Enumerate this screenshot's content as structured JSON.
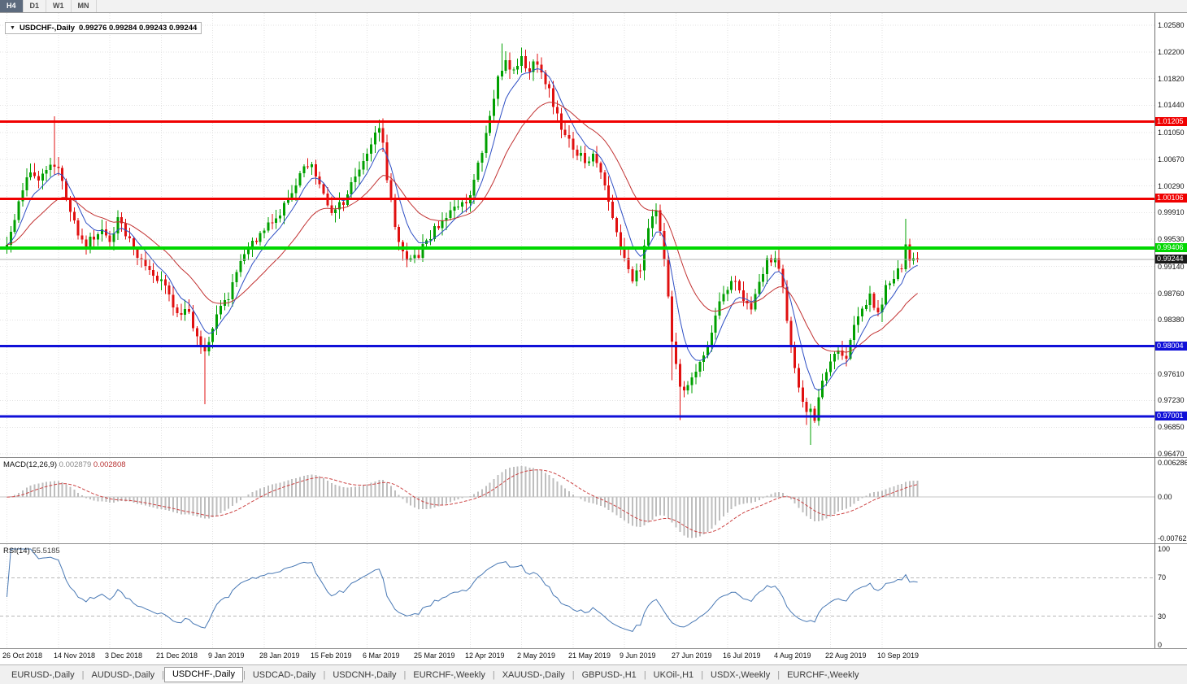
{
  "colors": {
    "up": "#00A000",
    "down": "#E01010",
    "ma_fast": "#2E4FC4",
    "ma_slow": "#C23232",
    "macd_hist": "#BEBEBE",
    "macd_signal": "#CC4444",
    "rsi_line": "#4878B4",
    "level_red": "#F00000",
    "level_green": "#00D800",
    "level_blue": "#1010D8",
    "grid": "#E2E2E2",
    "current_line": "#B0B0B0",
    "current_tag_bg": "#1A1A1A"
  },
  "toolbar": {
    "timeframes": [
      {
        "label": "H4",
        "active": true
      },
      {
        "label": "D1",
        "active": false
      },
      {
        "label": "W1",
        "active": false
      },
      {
        "label": "MN",
        "active": false
      }
    ]
  },
  "chart": {
    "symbol_label": "USDCHF-,Daily",
    "ohlc": "0.99276 0.99284 0.99243 0.99244",
    "current_price": "0.99244",
    "axis_ticks": [
      "1.02580",
      "1.02200",
      "1.01820",
      "1.01440",
      "1.01050",
      "1.00670",
      "1.00290",
      "0.99910",
      "0.99530",
      "0.99140",
      "0.98760",
      "0.98380",
      "0.97610",
      "0.97230",
      "0.96850",
      "0.96470"
    ],
    "levels": [
      {
        "value": 1.01205,
        "label": "1.01205",
        "color_key": "level_red",
        "thickness": 3
      },
      {
        "value": 1.00106,
        "label": "1.00106",
        "color_key": "level_red",
        "thickness": 3
      },
      {
        "value": 0.99406,
        "label": "0.99406",
        "color_key": "level_green",
        "thickness": 4
      },
      {
        "value": 0.98004,
        "label": "0.98004",
        "color_key": "level_blue",
        "thickness": 3
      },
      {
        "value": 0.97001,
        "label": "0.97001",
        "color_key": "level_blue",
        "thickness": 3
      }
    ]
  },
  "macd": {
    "label": "MACD(12,26,9)",
    "value_main": "0.002879",
    "value_signal": "0.002808",
    "axis": [
      "0.006286",
      "0.00",
      "-0.00762"
    ]
  },
  "rsi": {
    "label": "RSI(14)",
    "value": "55.5185",
    "axis": [
      "100",
      "70",
      "30",
      "0"
    ],
    "guides": [
      70,
      30
    ]
  },
  "tabs": [
    {
      "label": "EURUSD-,Daily",
      "active": false
    },
    {
      "label": "AUDUSD-,Daily",
      "active": false
    },
    {
      "label": "USDCHF-,Daily",
      "active": true
    },
    {
      "label": "USDCAD-,Daily",
      "active": false
    },
    {
      "label": "USDCNH-,Daily",
      "active": false
    },
    {
      "label": "EURCHF-,Weekly",
      "active": false
    },
    {
      "label": "XAUUSD-,Daily",
      "active": false
    },
    {
      "label": "GBPUSD-,H1",
      "active": false
    },
    {
      "label": "UKOil-,H1",
      "active": false
    },
    {
      "label": "USDX-,Weekly",
      "active": false
    },
    {
      "label": "EURCHF-,Weekly",
      "active": false
    }
  ],
  "chart_data": {
    "type": "candlestick",
    "symbol": "USDCHF",
    "timeframe": "Daily",
    "bars": 231,
    "bars_per_label": 13,
    "price_axis_range": [
      0.96424,
      1.02754
    ],
    "last_ohlc": {
      "open": 0.99276,
      "high": 0.99284,
      "low": 0.99243,
      "close": 0.99244
    },
    "x_labels": [
      "26 Oct 2018",
      "14 Nov 2018",
      "3 Dec 2018",
      "21 Dec 2018",
      "9 Jan 2019",
      "28 Jan 2019",
      "15 Feb 2019",
      "6 Mar 2019",
      "25 Mar 2019",
      "12 Apr 2019",
      "2 May 2019",
      "21 May 2019",
      "9 Jun 2019",
      "27 Jun 2019",
      "16 Jul 2019",
      "4 Aug 2019",
      "22 Aug 2019",
      "10 Sep 2019"
    ],
    "support_resistance": [
      1.01205,
      1.00106,
      0.99406,
      0.98004,
      0.97001
    ],
    "close_waypoints": [
      [
        0,
        0.995
      ],
      [
        2,
        0.9985
      ],
      [
        4,
        1.0025
      ],
      [
        6,
        1.0055
      ],
      [
        8,
        1.003
      ],
      [
        10,
        1.005
      ],
      [
        12,
        1.0062
      ],
      [
        14,
        1.004
      ],
      [
        16,
        0.9995
      ],
      [
        18,
        0.996
      ],
      [
        20,
        0.9945
      ],
      [
        22,
        0.9958
      ],
      [
        24,
        0.9968
      ],
      [
        26,
        0.995
      ],
      [
        28,
        0.9985
      ],
      [
        30,
        0.996
      ],
      [
        32,
        0.9935
      ],
      [
        34,
        0.9925
      ],
      [
        36,
        0.9912
      ],
      [
        38,
        0.99
      ],
      [
        40,
        0.988
      ],
      [
        42,
        0.9862
      ],
      [
        44,
        0.9845
      ],
      [
        46,
        0.9852
      ],
      [
        48,
        0.981
      ],
      [
        50,
        0.9788
      ],
      [
        52,
        0.9828
      ],
      [
        54,
        0.9852
      ],
      [
        56,
        0.987
      ],
      [
        58,
        0.9905
      ],
      [
        60,
        0.9928
      ],
      [
        62,
        0.9948
      ],
      [
        64,
        0.9958
      ],
      [
        66,
        0.9972
      ],
      [
        68,
        0.9985
      ],
      [
        70,
        1.0002
      ],
      [
        72,
        1.0022
      ],
      [
        74,
        1.0042
      ],
      [
        76,
        1.006
      ],
      [
        78,
        1.0048
      ],
      [
        80,
        1.0018
      ],
      [
        82,
        0.9995
      ],
      [
        84,
        1.0
      ],
      [
        86,
        1.0015
      ],
      [
        88,
        1.004
      ],
      [
        90,
        1.007
      ],
      [
        92,
        1.0092
      ],
      [
        94,
        1.011
      ],
      [
        95,
        1.009
      ],
      [
        96,
        1.0042
      ],
      [
        98,
        0.9975
      ],
      [
        100,
        0.9932
      ],
      [
        102,
        0.9922
      ],
      [
        104,
        0.993
      ],
      [
        106,
        0.995
      ],
      [
        108,
        0.9966
      ],
      [
        110,
        0.998
      ],
      [
        112,
        0.9992
      ],
      [
        114,
        1.0
      ],
      [
        116,
        1.0008
      ],
      [
        118,
        1.0036
      ],
      [
        120,
        1.008
      ],
      [
        122,
        1.013
      ],
      [
        124,
        1.0185
      ],
      [
        126,
        1.0205
      ],
      [
        128,
        1.019
      ],
      [
        130,
        1.0212
      ],
      [
        132,
        1.0195
      ],
      [
        134,
        1.0205
      ],
      [
        136,
        1.0178
      ],
      [
        138,
        1.0148
      ],
      [
        140,
        1.0112
      ],
      [
        142,
        1.0092
      ],
      [
        144,
        1.0078
      ],
      [
        146,
        1.0062
      ],
      [
        148,
        1.0075
      ],
      [
        150,
        1.0052
      ],
      [
        152,
        1.001
      ],
      [
        154,
        0.9968
      ],
      [
        156,
        0.993
      ],
      [
        158,
        0.9895
      ],
      [
        160,
        0.991
      ],
      [
        162,
        0.9975
      ],
      [
        164,
        0.9995
      ],
      [
        166,
        0.9925
      ],
      [
        168,
        0.981
      ],
      [
        170,
        0.9738
      ],
      [
        172,
        0.9742
      ],
      [
        174,
        0.9768
      ],
      [
        176,
        0.979
      ],
      [
        178,
        0.9825
      ],
      [
        180,
        0.9858
      ],
      [
        182,
        0.9885
      ],
      [
        184,
        0.99
      ],
      [
        186,
        0.9868
      ],
      [
        188,
        0.9855
      ],
      [
        190,
        0.9888
      ],
      [
        192,
        0.9922
      ],
      [
        194,
        0.993
      ],
      [
        196,
        0.988
      ],
      [
        198,
        0.9795
      ],
      [
        200,
        0.9735
      ],
      [
        202,
        0.9712
      ],
      [
        204,
        0.9698
      ],
      [
        206,
        0.9745
      ],
      [
        208,
        0.9778
      ],
      [
        210,
        0.98
      ],
      [
        212,
        0.9785
      ],
      [
        214,
        0.9825
      ],
      [
        216,
        0.9858
      ],
      [
        218,
        0.9872
      ],
      [
        220,
        0.985
      ],
      [
        222,
        0.9882
      ],
      [
        224,
        0.9898
      ],
      [
        226,
        0.9912
      ],
      [
        227,
        0.9948
      ],
      [
        228,
        0.9928
      ],
      [
        229,
        0.9932
      ],
      [
        230,
        0.99244
      ]
    ],
    "wick_spikes": [
      {
        "bar": 12,
        "high": 1.0128
      },
      {
        "bar": 50,
        "low": 0.9718
      },
      {
        "bar": 94,
        "high": 1.0121
      },
      {
        "bar": 125,
        "high": 1.0232
      },
      {
        "bar": 130,
        "high": 1.0226
      },
      {
        "bar": 168,
        "low": 0.9752
      },
      {
        "bar": 170,
        "low": 0.9695
      },
      {
        "bar": 202,
        "low": 0.9688
      },
      {
        "bar": 203,
        "low": 0.966
      },
      {
        "bar": 227,
        "high": 0.9982
      }
    ],
    "indicators": [
      {
        "name": "MACD",
        "params": [
          12,
          26,
          9
        ],
        "values": [
          0.002879,
          0.002808
        ],
        "plot_range": [
          -0.0085,
          0.0072
        ]
      },
      {
        "name": "RSI",
        "params": [
          14
        ],
        "value": 55.5185,
        "plot_range": [
          0,
          100
        ]
      }
    ],
    "moving_averages": [
      {
        "type": "ema",
        "period": 7,
        "color_key": "ma_fast"
      },
      {
        "type": "ema",
        "period": 22,
        "color_key": "ma_slow"
      }
    ]
  }
}
